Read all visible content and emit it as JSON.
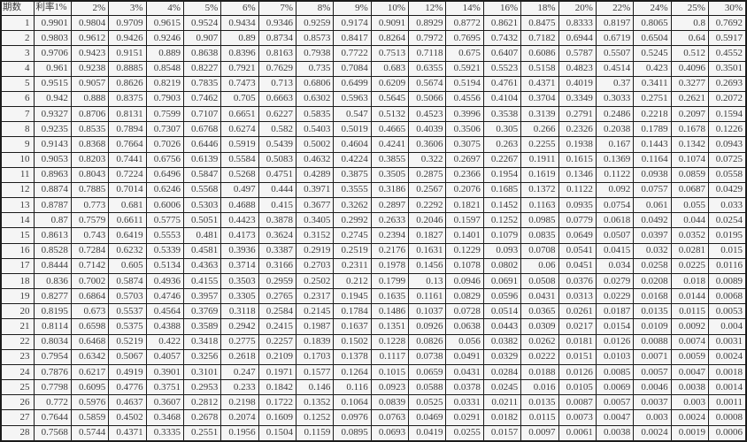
{
  "colors": {
    "grid": "#1b1b1b",
    "cell_bg": "#f5f5f5",
    "text": "#3b3b3b"
  },
  "chart_data": {
    "type": "table",
    "corner_header": "期数",
    "rate_header_prefix": "利率",
    "grid": "on",
    "columns": [
      "期数",
      "利率1%",
      "2%",
      "3%",
      "4%",
      "5%",
      "6%",
      "7%",
      "8%",
      "9%",
      "10%",
      "12%",
      "14%",
      "16%",
      "18%",
      "20%",
      "22%",
      "24%",
      "25%",
      "30%"
    ],
    "rows": [
      [
        "1",
        "0.9901",
        "0.9804",
        "0.9709",
        "0.9615",
        "0.9524",
        "0.9434",
        "0.9346",
        "0.9259",
        "0.9174",
        "0.9091",
        "0.8929",
        "0.8772",
        "0.8621",
        "0.8475",
        "0.8333",
        "0.8197",
        "0.8065",
        "0.8",
        "0.7692"
      ],
      [
        "2",
        "0.9803",
        "0.9612",
        "0.9426",
        "0.9246",
        "0.907",
        "0.89",
        "0.8734",
        "0.8573",
        "0.8417",
        "0.8264",
        "0.7972",
        "0.7695",
        "0.7432",
        "0.7182",
        "0.6944",
        "0.6719",
        "0.6504",
        "0.64",
        "0.5917"
      ],
      [
        "3",
        "0.9706",
        "0.9423",
        "0.9151",
        "0.889",
        "0.8638",
        "0.8396",
        "0.8163",
        "0.7938",
        "0.7722",
        "0.7513",
        "0.7118",
        "0.675",
        "0.6407",
        "0.6086",
        "0.5787",
        "0.5507",
        "0.5245",
        "0.512",
        "0.4552"
      ],
      [
        "4",
        "0.961",
        "0.9238",
        "0.8885",
        "0.8548",
        "0.8227",
        "0.7921",
        "0.7629",
        "0.735",
        "0.7084",
        "0.683",
        "0.6355",
        "0.5921",
        "0.5523",
        "0.5158",
        "0.4823",
        "0.4514",
        "0.423",
        "0.4096",
        "0.3501"
      ],
      [
        "5",
        "0.9515",
        "0.9057",
        "0.8626",
        "0.8219",
        "0.7835",
        "0.7473",
        "0.713",
        "0.6806",
        "0.6499",
        "0.6209",
        "0.5674",
        "0.5194",
        "0.4761",
        "0.4371",
        "0.4019",
        "0.37",
        "0.3411",
        "0.3277",
        "0.2693"
      ],
      [
        "6",
        "0.942",
        "0.888",
        "0.8375",
        "0.7903",
        "0.7462",
        "0.705",
        "0.6663",
        "0.6302",
        "0.5963",
        "0.5645",
        "0.5066",
        "0.4556",
        "0.4104",
        "0.3704",
        "0.3349",
        "0.3033",
        "0.2751",
        "0.2621",
        "0.2072"
      ],
      [
        "7",
        "0.9327",
        "0.8706",
        "0.8131",
        "0.7599",
        "0.7107",
        "0.6651",
        "0.6227",
        "0.5835",
        "0.547",
        "0.5132",
        "0.4523",
        "0.3996",
        "0.3538",
        "0.3139",
        "0.2791",
        "0.2486",
        "0.2218",
        "0.2097",
        "0.1594"
      ],
      [
        "8",
        "0.9235",
        "0.8535",
        "0.7894",
        "0.7307",
        "0.6768",
        "0.6274",
        "0.582",
        "0.5403",
        "0.5019",
        "0.4665",
        "0.4039",
        "0.3506",
        "0.305",
        "0.266",
        "0.2326",
        "0.2038",
        "0.1789",
        "0.1678",
        "0.1226"
      ],
      [
        "9",
        "0.9143",
        "0.8368",
        "0.7664",
        "0.7026",
        "0.6446",
        "0.5919",
        "0.5439",
        "0.5002",
        "0.4604",
        "0.4241",
        "0.3606",
        "0.3075",
        "0.263",
        "0.2255",
        "0.1938",
        "0.167",
        "0.1443",
        "0.1342",
        "0.0943"
      ],
      [
        "10",
        "0.9053",
        "0.8203",
        "0.7441",
        "0.6756",
        "0.6139",
        "0.5584",
        "0.5083",
        "0.4632",
        "0.4224",
        "0.3855",
        "0.322",
        "0.2697",
        "0.2267",
        "0.1911",
        "0.1615",
        "0.1369",
        "0.1164",
        "0.1074",
        "0.0725"
      ],
      [
        "11",
        "0.8963",
        "0.8043",
        "0.7224",
        "0.6496",
        "0.5847",
        "0.5268",
        "0.4751",
        "0.4289",
        "0.3875",
        "0.3505",
        "0.2875",
        "0.2366",
        "0.1954",
        "0.1619",
        "0.1346",
        "0.1122",
        "0.0938",
        "0.0859",
        "0.0558"
      ],
      [
        "12",
        "0.8874",
        "0.7885",
        "0.7014",
        "0.6246",
        "0.5568",
        "0.497",
        "0.444",
        "0.3971",
        "0.3555",
        "0.3186",
        "0.2567",
        "0.2076",
        "0.1685",
        "0.1372",
        "0.1122",
        "0.092",
        "0.0757",
        "0.0687",
        "0.0429"
      ],
      [
        "13",
        "0.8787",
        "0.773",
        "0.681",
        "0.6006",
        "0.5303",
        "0.4688",
        "0.415",
        "0.3677",
        "0.3262",
        "0.2897",
        "0.2292",
        "0.1821",
        "0.1452",
        "0.1163",
        "0.0935",
        "0.0754",
        "0.061",
        "0.055",
        "0.033"
      ],
      [
        "14",
        "0.87",
        "0.7579",
        "0.6611",
        "0.5775",
        "0.5051",
        "0.4423",
        "0.3878",
        "0.3405",
        "0.2992",
        "0.2633",
        "0.2046",
        "0.1597",
        "0.1252",
        "0.0985",
        "0.0779",
        "0.0618",
        "0.0492",
        "0.044",
        "0.0254"
      ],
      [
        "15",
        "0.8613",
        "0.743",
        "0.6419",
        "0.5553",
        "0.481",
        "0.4173",
        "0.3624",
        "0.3152",
        "0.2745",
        "0.2394",
        "0.1827",
        "0.1401",
        "0.1079",
        "0.0835",
        "0.0649",
        "0.0507",
        "0.0397",
        "0.0352",
        "0.0195"
      ],
      [
        "16",
        "0.8528",
        "0.7284",
        "0.6232",
        "0.5339",
        "0.4581",
        "0.3936",
        "0.3387",
        "0.2919",
        "0.2519",
        "0.2176",
        "0.1631",
        "0.1229",
        "0.093",
        "0.0708",
        "0.0541",
        "0.0415",
        "0.032",
        "0.0281",
        "0.015"
      ],
      [
        "17",
        "0.8444",
        "0.7142",
        "0.605",
        "0.5134",
        "0.4363",
        "0.3714",
        "0.3166",
        "0.2703",
        "0.2311",
        "0.1978",
        "0.1456",
        "0.1078",
        "0.0802",
        "0.06",
        "0.0451",
        "0.034",
        "0.0258",
        "0.0225",
        "0.0116"
      ],
      [
        "18",
        "0.836",
        "0.7002",
        "0.5874",
        "0.4936",
        "0.4155",
        "0.3503",
        "0.2959",
        "0.2502",
        "0.212",
        "0.1799",
        "0.13",
        "0.0946",
        "0.0691",
        "0.0508",
        "0.0376",
        "0.0279",
        "0.0208",
        "0.018",
        "0.0089"
      ],
      [
        "19",
        "0.8277",
        "0.6864",
        "0.5703",
        "0.4746",
        "0.3957",
        "0.3305",
        "0.2765",
        "0.2317",
        "0.1945",
        "0.1635",
        "0.1161",
        "0.0829",
        "0.0596",
        "0.0431",
        "0.0313",
        "0.0229",
        "0.0168",
        "0.0144",
        "0.0068"
      ],
      [
        "20",
        "0.8195",
        "0.673",
        "0.5537",
        "0.4564",
        "0.3769",
        "0.3118",
        "0.2584",
        "0.2145",
        "0.1784",
        "0.1486",
        "0.1037",
        "0.0728",
        "0.0514",
        "0.0365",
        "0.0261",
        "0.0187",
        "0.0135",
        "0.0115",
        "0.0053"
      ],
      [
        "21",
        "0.8114",
        "0.6598",
        "0.5375",
        "0.4388",
        "0.3589",
        "0.2942",
        "0.2415",
        "0.1987",
        "0.1637",
        "0.1351",
        "0.0926",
        "0.0638",
        "0.0443",
        "0.0309",
        "0.0217",
        "0.0154",
        "0.0109",
        "0.0092",
        "0.004"
      ],
      [
        "22",
        "0.8034",
        "0.6468",
        "0.5219",
        "0.422",
        "0.3418",
        "0.2775",
        "0.2257",
        "0.1839",
        "0.1502",
        "0.1228",
        "0.0826",
        "0.056",
        "0.0382",
        "0.0262",
        "0.0181",
        "0.0126",
        "0.0088",
        "0.0074",
        "0.0031"
      ],
      [
        "23",
        "0.7954",
        "0.6342",
        "0.5067",
        "0.4057",
        "0.3256",
        "0.2618",
        "0.2109",
        "0.1703",
        "0.1378",
        "0.1117",
        "0.0738",
        "0.0491",
        "0.0329",
        "0.0222",
        "0.0151",
        "0.0103",
        "0.0071",
        "0.0059",
        "0.0024"
      ],
      [
        "24",
        "0.7876",
        "0.6217",
        "0.4919",
        "0.3901",
        "0.3101",
        "0.247",
        "0.1971",
        "0.1577",
        "0.1264",
        "0.1015",
        "0.0659",
        "0.0431",
        "0.0284",
        "0.0188",
        "0.0126",
        "0.0085",
        "0.0057",
        "0.0047",
        "0.0018"
      ],
      [
        "25",
        "0.7798",
        "0.6095",
        "0.4776",
        "0.3751",
        "0.2953",
        "0.233",
        "0.1842",
        "0.146",
        "0.116",
        "0.0923",
        "0.0588",
        "0.0378",
        "0.0245",
        "0.016",
        "0.0105",
        "0.0069",
        "0.0046",
        "0.0038",
        "0.0014"
      ],
      [
        "26",
        "0.772",
        "0.5976",
        "0.4637",
        "0.3607",
        "0.2812",
        "0.2198",
        "0.1722",
        "0.1352",
        "0.1064",
        "0.0839",
        "0.0525",
        "0.0331",
        "0.0211",
        "0.0135",
        "0.0087",
        "0.0057",
        "0.0037",
        "0.003",
        "0.0011"
      ],
      [
        "27",
        "0.7644",
        "0.5859",
        "0.4502",
        "0.3468",
        "0.2678",
        "0.2074",
        "0.1609",
        "0.1252",
        "0.0976",
        "0.0763",
        "0.0469",
        "0.0291",
        "0.0182",
        "0.0115",
        "0.0073",
        "0.0047",
        "0.003",
        "0.0024",
        "0.0008"
      ],
      [
        "28",
        "0.7568",
        "0.5744",
        "0.4371",
        "0.3335",
        "0.2551",
        "0.1956",
        "0.1504",
        "0.1159",
        "0.0895",
        "0.0693",
        "0.0419",
        "0.0255",
        "0.0157",
        "0.0097",
        "0.0061",
        "0.0038",
        "0.0024",
        "0.0019",
        "0.0006"
      ]
    ]
  }
}
